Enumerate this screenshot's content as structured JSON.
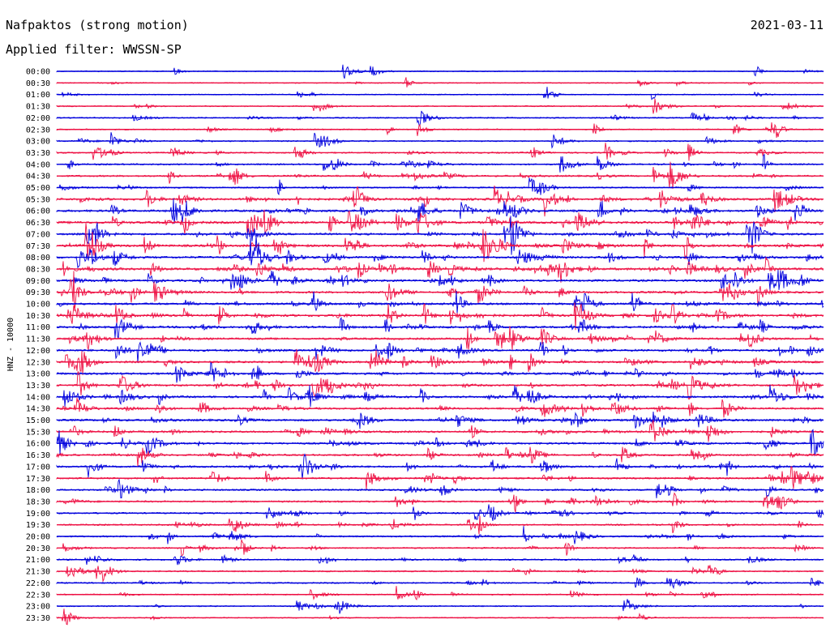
{
  "header": {
    "station": "Nafpaktos (strong motion)",
    "date": "2021-03-11",
    "filter": "Applied filter: WWSSN-SP"
  },
  "chart_data": {
    "type": "line",
    "title": "Nafpaktos (strong motion)",
    "subtitle": "Applied filter: WWSSN-SP",
    "date": "2021-03-11",
    "ylabel": "HNZ - 10000",
    "xlabel": "",
    "row_interval_minutes": 30,
    "colors": {
      "even_rows": "#0000dd",
      "odd_rows": "#ee1144"
    },
    "tick_labels": [
      "00:00",
      "00:30",
      "01:00",
      "01:30",
      "02:00",
      "02:30",
      "03:00",
      "03:30",
      "04:00",
      "04:30",
      "05:00",
      "05:30",
      "06:00",
      "06:30",
      "07:00",
      "07:30",
      "08:00",
      "08:30",
      "09:00",
      "09:30",
      "10:00",
      "10:30",
      "11:00",
      "11:30",
      "12:00",
      "12:30",
      "13:00",
      "13:30",
      "14:00",
      "14:30",
      "15:00",
      "15:30",
      "16:00",
      "16:30",
      "17:00",
      "17:30",
      "18:00",
      "18:30",
      "19:00",
      "19:30",
      "20:00",
      "20:30",
      "21:00",
      "21:30",
      "22:00",
      "22:30",
      "23:00",
      "23:30"
    ],
    "activity_level": [
      0.05,
      0.1,
      0.12,
      0.15,
      0.2,
      0.18,
      0.22,
      0.28,
      0.38,
      0.4,
      0.3,
      0.7,
      0.65,
      0.75,
      0.6,
      0.7,
      0.65,
      0.75,
      0.65,
      0.6,
      0.6,
      0.7,
      0.6,
      0.55,
      0.6,
      0.6,
      0.6,
      0.55,
      0.6,
      0.55,
      0.6,
      0.55,
      0.55,
      0.45,
      0.5,
      0.45,
      0.4,
      0.4,
      0.35,
      0.35,
      0.35,
      0.3,
      0.3,
      0.25,
      0.25,
      0.2,
      0.15,
      0.1
    ],
    "grid": false,
    "legend": "none"
  }
}
